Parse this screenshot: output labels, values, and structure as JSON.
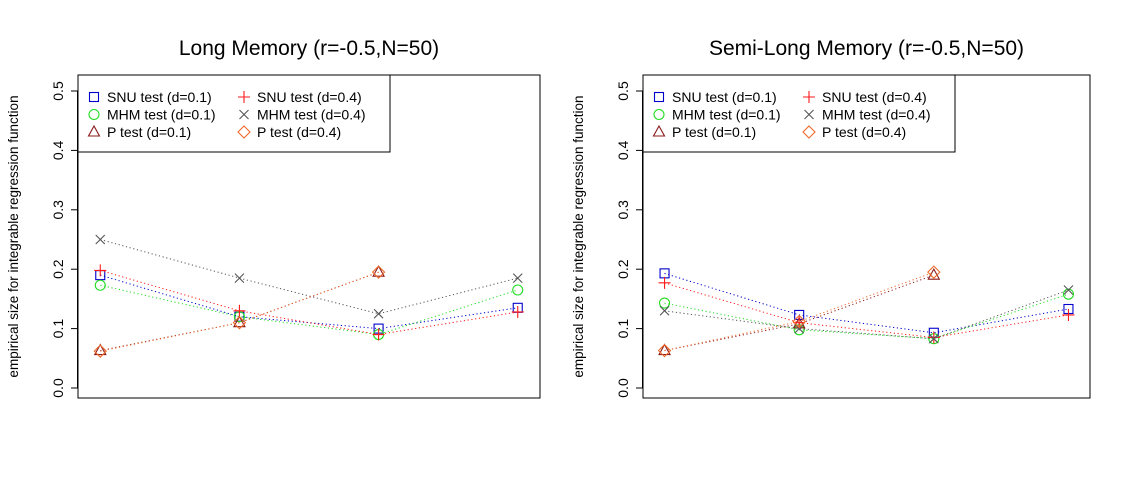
{
  "chart_data": [
    {
      "type": "line",
      "title": "Long Memory (r=-0.5,N=50)",
      "xlabel": "",
      "ylabel": "empirical size for integrable regression function",
      "ylim": [
        0.0,
        0.5
      ],
      "yticks": [
        0.0,
        0.1,
        0.2,
        0.3,
        0.4,
        0.5
      ],
      "ytick_labels": [
        "0.0",
        "0.1",
        "0.2",
        "0.3",
        "0.4",
        "0.5"
      ],
      "xlim": [
        0.84,
        4.16
      ],
      "legend_position": "top-left",
      "series": [
        {
          "name": "SNU test (d=0.1)",
          "color": "#0000cd",
          "marker": "square",
          "x": [
            1,
            2,
            3,
            4
          ],
          "values": [
            0.19,
            0.12,
            0.1,
            0.135
          ]
        },
        {
          "name": "MHM test (d=0.1)",
          "color": "#22dd22",
          "marker": "circle",
          "x": [
            1,
            2,
            3,
            4
          ],
          "values": [
            0.173,
            0.12,
            0.09,
            0.165
          ]
        },
        {
          "name": "P test (d=0.1)",
          "color": "#8b1a1a",
          "marker": "triangle",
          "x": [
            1,
            2,
            3
          ],
          "values": [
            0.063,
            0.11,
            0.195
          ]
        },
        {
          "name": "SNU test (d=0.4)",
          "color": "#ff1a1a",
          "marker": "plus",
          "x": [
            1,
            2,
            3,
            4
          ],
          "values": [
            0.198,
            0.13,
            0.09,
            0.128
          ]
        },
        {
          "name": "MHM test (d=0.4)",
          "color": "#555555",
          "marker": "cross",
          "x": [
            1,
            2,
            3,
            4
          ],
          "values": [
            0.25,
            0.185,
            0.125,
            0.185
          ]
        },
        {
          "name": "P test (d=0.4)",
          "color": "#ee6a2a",
          "marker": "diamond",
          "x": [
            1,
            2,
            3
          ],
          "values": [
            0.062,
            0.11,
            0.195
          ]
        }
      ]
    },
    {
      "type": "line",
      "title": "Semi-Long Memory (r=-0.5,N=50)",
      "xlabel": "",
      "ylabel": "empirical size for integrable regression function",
      "ylim": [
        0.0,
        0.5
      ],
      "yticks": [
        0.0,
        0.1,
        0.2,
        0.3,
        0.4,
        0.5
      ],
      "ytick_labels": [
        "0.0",
        "0.1",
        "0.2",
        "0.3",
        "0.4",
        "0.5"
      ],
      "xlim": [
        0.84,
        4.16
      ],
      "legend_position": "top-left",
      "series": [
        {
          "name": "SNU test (d=0.1)",
          "color": "#0000cd",
          "marker": "square",
          "x": [
            1,
            2,
            3,
            4
          ],
          "values": [
            0.193,
            0.123,
            0.093,
            0.133
          ]
        },
        {
          "name": "MHM test (d=0.1)",
          "color": "#22dd22",
          "marker": "circle",
          "x": [
            1,
            2,
            3,
            4
          ],
          "values": [
            0.143,
            0.098,
            0.083,
            0.158
          ]
        },
        {
          "name": "P test (d=0.1)",
          "color": "#8b1a1a",
          "marker": "triangle",
          "x": [
            1,
            2,
            3
          ],
          "values": [
            0.063,
            0.108,
            0.19
          ]
        },
        {
          "name": "SNU test (d=0.4)",
          "color": "#ff1a1a",
          "marker": "plus",
          "x": [
            1,
            2,
            3,
            4
          ],
          "values": [
            0.177,
            0.11,
            0.085,
            0.123
          ]
        },
        {
          "name": "MHM test (d=0.4)",
          "color": "#555555",
          "marker": "cross",
          "x": [
            1,
            2,
            3,
            4
          ],
          "values": [
            0.13,
            0.1,
            0.083,
            0.165
          ]
        },
        {
          "name": "P test (d=0.4)",
          "color": "#ee6a2a",
          "marker": "diamond",
          "x": [
            1,
            2,
            3
          ],
          "values": [
            0.063,
            0.112,
            0.195
          ]
        }
      ]
    }
  ]
}
